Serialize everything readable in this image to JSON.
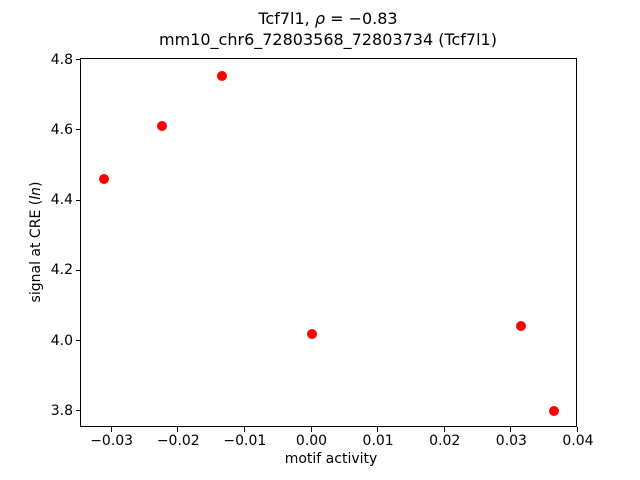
{
  "title": {
    "gene_part": "Tcf7l1, ",
    "rho_symbol": "ρ",
    "equals_part": " = −0.83",
    "line2": "mm10_chr6_72803568_72803734 (Tcf7l1)"
  },
  "axes": {
    "xlabel": "motif activity",
    "ylabel_open": "signal at CRE (",
    "ylabel_italic": "ln",
    "ylabel_close": ")"
  },
  "chart_data": {
    "type": "scatter",
    "title": "Tcf7l1, ρ = −0.83",
    "subtitle": "mm10_chr6_72803568_72803734 (Tcf7l1)",
    "xlabel": "motif activity",
    "ylabel": "signal at CRE (ln)",
    "xlim": [
      -0.0346,
      0.04
    ],
    "ylim": [
      3.75,
      4.8
    ],
    "grid": false,
    "legend": "none",
    "marker_color": "#ff0000",
    "x_ticks": [
      -0.03,
      -0.02,
      -0.01,
      0.0,
      0.01,
      0.02,
      0.03,
      0.04
    ],
    "x_tick_labels": [
      "−0.03",
      "−0.02",
      "−0.01",
      "0.00",
      "0.01",
      "0.02",
      "0.03",
      "0.04"
    ],
    "y_ticks": [
      3.8,
      4.0,
      4.2,
      4.4,
      4.6,
      4.8
    ],
    "y_tick_labels": [
      "3.8",
      "4.0",
      "4.2",
      "4.4",
      "4.6",
      "4.8"
    ],
    "points": [
      {
        "x": -0.0311,
        "y": 4.458
      },
      {
        "x": -0.0225,
        "y": 4.61
      },
      {
        "x": -0.0135,
        "y": 4.753
      },
      {
        "x": 0.0,
        "y": 4.017
      },
      {
        "x": 0.0315,
        "y": 4.041
      },
      {
        "x": 0.0364,
        "y": 3.798
      }
    ]
  }
}
